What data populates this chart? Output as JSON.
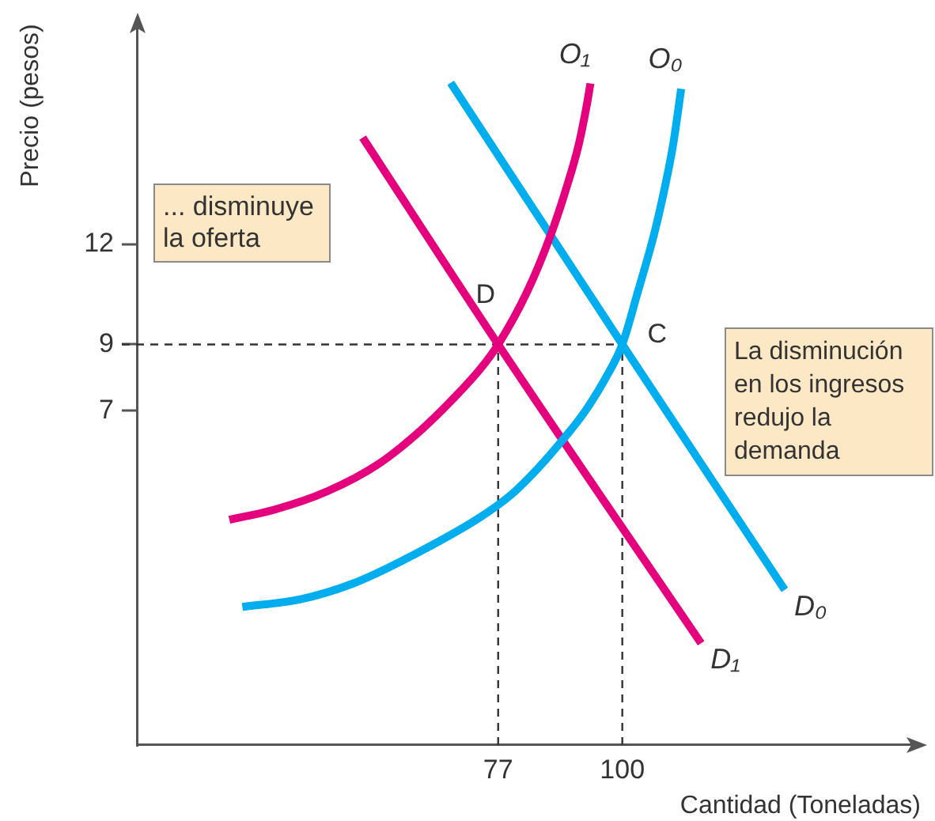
{
  "chart_data": {
    "type": "line",
    "xlabel": "Cantidad (Toneladas)",
    "ylabel": "Precio (pesos)",
    "xlim": [
      10.2,
      155.3
    ],
    "ylim": [
      -3,
      18.6
    ],
    "xticks": [
      77,
      100
    ],
    "yticks": [
      7,
      9,
      12
    ],
    "series": [
      {
        "name": "O₁",
        "color": "#e5007d",
        "x": [
          27.2,
          35.5,
          45.3,
          55,
          62.8,
          69.7,
          73.6,
          77,
          82.4,
          86.8,
          89.7,
          91.9,
          93.3,
          94.1
        ],
        "values": [
          3.75,
          4.05,
          4.6,
          5.44,
          6.45,
          7.55,
          8.25,
          9,
          10.59,
          12.31,
          13.72,
          14.97,
          16.07,
          16.82
        ]
      },
      {
        "name": "O₀",
        "color": "#00aeef",
        "x": [
          29.6,
          40.4,
          50.1,
          59.9,
          73.6,
          79.4,
          84.3,
          89.2,
          93.1,
          97,
          100,
          102.9,
          105.9,
          107.9,
          109.4,
          110.4,
          110.9
        ],
        "values": [
          1.14,
          1.37,
          1.84,
          2.58,
          3.82,
          4.5,
          5.28,
          6.19,
          7,
          8.02,
          9,
          10.59,
          12.31,
          13.72,
          14.97,
          16.07,
          16.66
        ]
      },
      {
        "name": "D₀",
        "color": "#00aeef",
        "x": [
          68.2,
          100,
          130.1
        ],
        "values": [
          16.84,
          9,
          1.65
        ]
      },
      {
        "name": "D₁",
        "color": "#e5007d",
        "x": [
          51.9,
          77,
          114.6
        ],
        "values": [
          15.2,
          9,
          0.05
        ]
      }
    ],
    "ref_lines": [
      {
        "axis": "y",
        "value": 9,
        "color": "#333333",
        "line_style": "dashed"
      },
      {
        "axis": "x",
        "value": 77,
        "color": "#333333",
        "line_style": "dashed"
      },
      {
        "axis": "x",
        "value": 100,
        "color": "#333333",
        "line_style": "dashed"
      }
    ],
    "annotations": [
      "... disminuye la oferta",
      "La disminución en los ingresos redujo la demanda",
      {
        "text": "D",
        "x": 77,
        "y": 9
      },
      {
        "text": "C",
        "x": 100,
        "y": 9
      }
    ]
  }
}
